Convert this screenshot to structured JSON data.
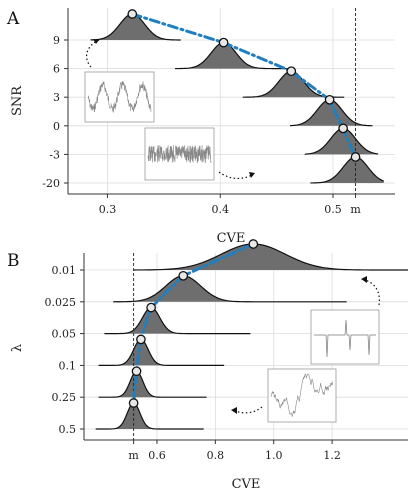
{
  "chart_data": [
    {
      "panel_label": "A",
      "type": "ridgeline",
      "xlabel": "CVE",
      "ylabel": "SNR",
      "xlim": [
        0.265,
        0.555
      ],
      "x_ticks": [
        {
          "value": 0.3,
          "label": "0.3"
        },
        {
          "value": 0.4,
          "label": "0.4"
        },
        {
          "value": 0.5,
          "label": "0.5"
        },
        {
          "value": 0.52,
          "label": "m"
        }
      ],
      "reference_line": {
        "value": 0.52,
        "label": "m",
        "style": "dashed"
      },
      "categories": [
        "9",
        "6",
        "3",
        "0",
        "-3",
        "-20"
      ],
      "points": [
        0.322,
        0.403,
        0.463,
        0.497,
        0.509,
        0.52
      ],
      "ridge_x_min": [
        0.285,
        0.36,
        0.42,
        0.462,
        0.475,
        0.48
      ],
      "ridge_x_max": [
        0.365,
        0.46,
        0.51,
        0.535,
        0.54,
        0.545
      ],
      "ridge_width": [
        0.011,
        0.011,
        0.011,
        0.011,
        0.011,
        0.011
      ],
      "annotations": [
        "sinusoid-inset",
        "noise-inset"
      ]
    },
    {
      "panel_label": "B",
      "type": "ridgeline",
      "xlabel": "CVE",
      "ylabel": "λ",
      "xlim": [
        0.35,
        1.46
      ],
      "x_ticks": [
        {
          "value": 0.52,
          "label": "m"
        },
        {
          "value": 0.6,
          "label": "0.6"
        },
        {
          "value": 0.8,
          "label": "0.8"
        },
        {
          "value": 1.0,
          "label": "1.0"
        },
        {
          "value": 1.2,
          "label": "1.2"
        }
      ],
      "reference_line": {
        "value": 0.52,
        "label": "m",
        "style": "dashed"
      },
      "categories": [
        "0.01",
        "0.025",
        "0.05",
        "0.1",
        "0.25",
        "0.5"
      ],
      "points": [
        0.93,
        0.69,
        0.58,
        0.545,
        0.53,
        0.52
      ],
      "ridge_x_min": [
        0.52,
        0.45,
        0.42,
        0.4,
        0.4,
        0.39
      ],
      "ridge_x_max": [
        1.46,
        1.25,
        0.92,
        0.83,
        0.77,
        0.76
      ],
      "ridge_width": [
        0.11,
        0.06,
        0.03,
        0.025,
        0.022,
        0.022
      ],
      "annotations": [
        "spike-inset",
        "irregular-inset"
      ]
    }
  ],
  "colors": {
    "ridge_fill": "#6e6e6e",
    "trend_line": "#1f7fc0",
    "grid": "#dcdcdc",
    "point_fill": "#e8e8e8"
  }
}
